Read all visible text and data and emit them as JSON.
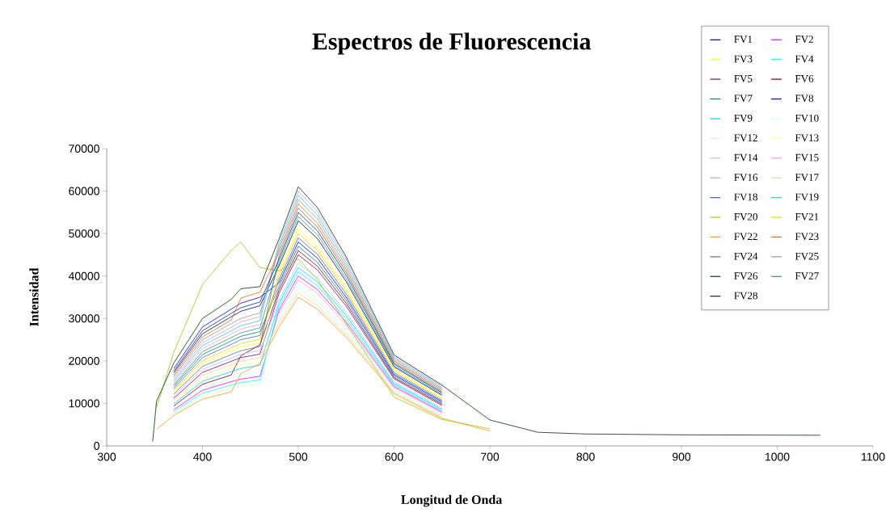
{
  "chart_data": {
    "type": "line",
    "title": "Espectros de Fluorescencia",
    "xlabel": "Longitud de  Onda",
    "ylabel": "Intensidad",
    "x": [
      348,
      352,
      370,
      400,
      430,
      440,
      460,
      480,
      500,
      520,
      550,
      600,
      650,
      700,
      750,
      800,
      900,
      1045
    ],
    "xlim": [
      300,
      1100
    ],
    "xticks": [
      300,
      400,
      500,
      600,
      700,
      800,
      900,
      1000,
      1100
    ],
    "ylim": [
      0,
      70000
    ],
    "yticks": [
      0,
      10000,
      20000,
      30000,
      40000,
      50000,
      60000,
      70000
    ],
    "legend": "top right",
    "series": [
      {
        "name": "FV1",
        "color": "#000080",
        "values": [
          null,
          null,
          17200,
          26400,
          30400,
          31700,
          33000,
          42400,
          53000,
          48800,
          38700,
          18600,
          11900,
          null,
          null,
          null,
          null,
          null
        ]
      },
      {
        "name": "FV2",
        "color": "#ff00ff",
        "values": [
          null,
          null,
          8500,
          13100,
          15100,
          15700,
          16400,
          32000,
          40000,
          36800,
          29200,
          14000,
          8000,
          null,
          null,
          null,
          null,
          null
        ]
      },
      {
        "name": "FV3",
        "color": "#ffff00",
        "values": [
          null,
          null,
          12600,
          19400,
          22300,
          23300,
          24300,
          40800,
          51000,
          46900,
          37200,
          17900,
          11300,
          null,
          null,
          null,
          null,
          null
        ]
      },
      {
        "name": "FV4",
        "color": "#00ffff",
        "values": [
          null,
          null,
          8100,
          12400,
          14300,
          14900,
          15500,
          32800,
          41000,
          37700,
          29900,
          14400,
          8300,
          null,
          null,
          null,
          null,
          null
        ]
      },
      {
        "name": "FV5",
        "color": "#800080",
        "values": [
          null,
          null,
          11200,
          17300,
          19900,
          20800,
          21600,
          36000,
          45000,
          41400,
          32900,
          15800,
          9500,
          null,
          null,
          null,
          null,
          null
        ]
      },
      {
        "name": "FV6",
        "color": "#800000",
        "values": [
          null,
          null,
          9400,
          14500,
          16700,
          21200,
          23800,
          36800,
          46000,
          42300,
          33600,
          16100,
          9800,
          null,
          null,
          null,
          null,
          null
        ]
      },
      {
        "name": "FV7",
        "color": "#008080",
        "values": [
          null,
          null,
          14000,
          21500,
          24700,
          25800,
          26900,
          37600,
          47000,
          43200,
          34300,
          16500,
          10100,
          null,
          null,
          null,
          null,
          null
        ]
      },
      {
        "name": "FV8",
        "color": "#0000ff",
        "values": [
          null,
          null,
          18200,
          28000,
          32200,
          33600,
          35000,
          38400,
          48000,
          44200,
          35000,
          16800,
          10400,
          null,
          null,
          null,
          null,
          null
        ]
      },
      {
        "name": "FV9",
        "color": "#00ccff",
        "values": [
          null,
          null,
          9900,
          15200,
          17500,
          18200,
          19000,
          33600,
          42000,
          38600,
          30700,
          14700,
          8600,
          null,
          null,
          null,
          null,
          null
        ]
      },
      {
        "name": "FV10",
        "color": "#ccffff",
        "values": [
          null,
          null,
          9000,
          13800,
          15900,
          16600,
          17300,
          30400,
          38000,
          35000,
          27700,
          13300,
          7400,
          null,
          null,
          null,
          null,
          null
        ]
      },
      {
        "name": "FV12",
        "color": "#ccffcc",
        "values": [
          null,
          null,
          7600,
          11700,
          13500,
          14000,
          14600,
          29600,
          37000,
          34000,
          27000,
          13000,
          7100,
          null,
          null,
          null,
          null,
          null
        ]
      },
      {
        "name": "FV13",
        "color": "#ffff99",
        "values": [
          null,
          null,
          10300,
          15900,
          18300,
          19100,
          19900,
          41600,
          52000,
          47800,
          38000,
          18200,
          11600,
          null,
          null,
          null,
          null,
          null
        ]
      },
      {
        "name": "FV14",
        "color": "#99ccff",
        "values": [
          null,
          null,
          11700,
          18000,
          20700,
          21600,
          22500,
          34400,
          43000,
          39600,
          31400,
          15100,
          8900,
          null,
          null,
          null,
          null,
          null
        ]
      },
      {
        "name": "FV15",
        "color": "#ff99cc",
        "values": [
          null,
          null,
          14900,
          22900,
          26300,
          27500,
          28600,
          31200,
          39000,
          35900,
          28500,
          13700,
          7700,
          null,
          null,
          null,
          null,
          null
        ]
      },
      {
        "name": "FV16",
        "color": "#cc99ff",
        "values": [
          null,
          null,
          15800,
          24300,
          27900,
          29200,
          30400,
          48000,
          60000,
          55200,
          43800,
          21000,
          14000,
          null,
          null,
          null,
          null,
          null
        ]
      },
      {
        "name": "FV17",
        "color": "#ffcc99",
        "values": [
          null,
          null,
          10800,
          16600,
          19100,
          19900,
          20800,
          28800,
          36000,
          33100,
          26300,
          12600,
          6800,
          null,
          null,
          null,
          null,
          null
        ]
      },
      {
        "name": "FV18",
        "color": "#3366ff",
        "values": [
          null,
          null,
          13500,
          20800,
          23900,
          25000,
          26000,
          39200,
          49000,
          45100,
          35800,
          17200,
          10700,
          null,
          null,
          null,
          null,
          null
        ]
      },
      {
        "name": "FV19",
        "color": "#33cccc",
        "values": [
          null,
          null,
          15300,
          23600,
          27100,
          28300,
          29500,
          47200,
          59000,
          54300,
          43100,
          20700,
          13700,
          null,
          null,
          null,
          null,
          null
        ]
      },
      {
        "name": "FV20",
        "color": "#99cc00",
        "values": [
          null,
          9000,
          22000,
          38000,
          46000,
          48000,
          42000,
          41200,
          44000,
          39100,
          28800,
          11500,
          6200,
          4000,
          null,
          null,
          null,
          null
        ]
      },
      {
        "name": "FV21",
        "color": "#ffcc00",
        "values": [
          null,
          null,
          13100,
          20100,
          23100,
          24100,
          25100,
          40000,
          50000,
          46000,
          36500,
          17500,
          11000,
          null,
          null,
          null,
          null,
          null
        ]
      },
      {
        "name": "FV22",
        "color": "#ff9900",
        "values": [
          null,
          3900,
          7200,
          11000,
          12700,
          17000,
          19400,
          28000,
          35000,
          32200,
          25600,
          12300,
          6500,
          3500,
          null,
          null,
          null,
          null
        ]
      },
      {
        "name": "FV23",
        "color": "#ff6600",
        "values": [
          null,
          null,
          16700,
          25700,
          29600,
          34800,
          36200,
          45600,
          57000,
          52400,
          41600,
          20000,
          13100,
          null,
          null,
          null,
          null,
          null
        ]
      },
      {
        "name": "FV24",
        "color": "#666699",
        "values": [
          null,
          null,
          12200,
          18700,
          21500,
          22400,
          23400,
          44800,
          56000,
          51500,
          40900,
          19600,
          12800,
          null,
          null,
          null,
          null,
          null
        ]
      },
      {
        "name": "FV25",
        "color": "#969696",
        "values": [
          null,
          null,
          16300,
          25000,
          28800,
          30000,
          31300,
          46400,
          58000,
          53400,
          42300,
          20300,
          13400,
          null,
          null,
          null,
          null,
          null
        ]
      },
      {
        "name": "FV26",
        "color": "#003366",
        "values": [
          null,
          null,
          17600,
          27100,
          31200,
          32500,
          33900,
          44000,
          55000,
          50600,
          40200,
          19300,
          12500,
          null,
          null,
          null,
          null,
          null
        ]
      },
      {
        "name": "FV27",
        "color": "#339966",
        "values": [
          null,
          null,
          14400,
          22200,
          25500,
          26600,
          27800,
          43200,
          54000,
          49700,
          39400,
          18900,
          12200,
          null,
          null,
          null,
          null,
          null
        ]
      },
      {
        "name": "FV28",
        "color": "#003300",
        "values": [
          1000,
          10500,
          19500,
          30000,
          34500,
          37000,
          37500,
          48800,
          61000,
          56100,
          44500,
          21400,
          14300,
          6100,
          3200,
          2800,
          2600,
          2500
        ]
      }
    ]
  }
}
